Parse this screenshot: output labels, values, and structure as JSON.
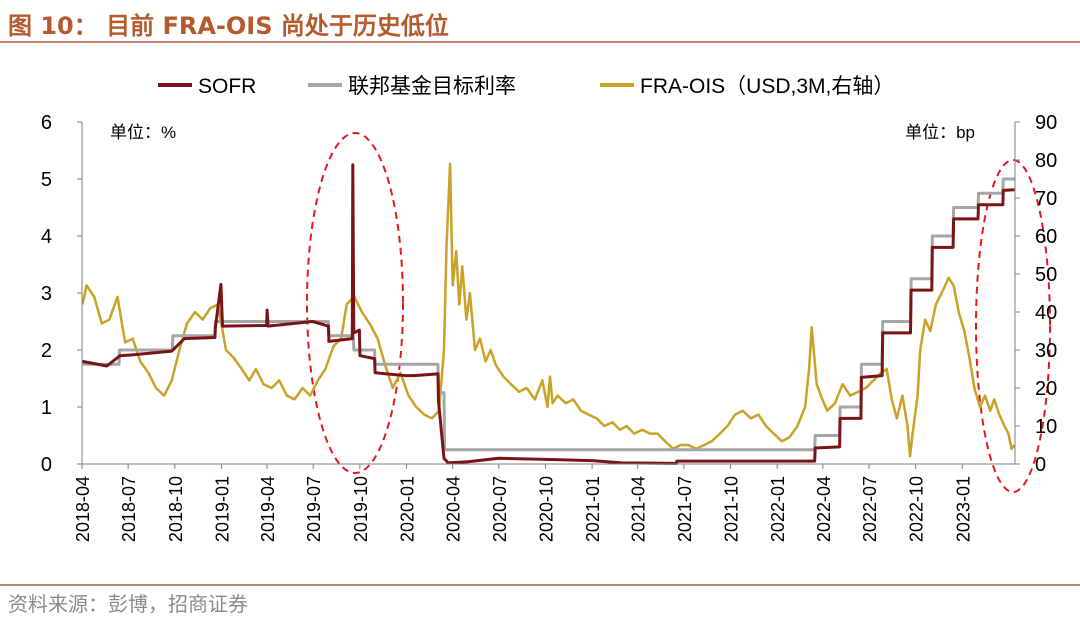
{
  "figure": {
    "title": "图 10： 目前 FRA-OIS 尚处于历史低位",
    "source": "资料来源：彭博，招商证券"
  },
  "chart_data": {
    "type": "line",
    "left_unit": "单位：%",
    "right_unit": "单位：bp",
    "y_left_lim": [
      0,
      6
    ],
    "y_right_lim": [
      0,
      90
    ],
    "y_left_ticks": [
      "0",
      "1",
      "2",
      "3",
      "4",
      "5",
      "6"
    ],
    "y_right_ticks": [
      "0",
      "10",
      "20",
      "30",
      "40",
      "50",
      "60",
      "70",
      "80",
      "90"
    ],
    "x_range": [
      "2018-04-01",
      "2023-04-15"
    ],
    "x_ticks": [
      "2018-04",
      "2018-07",
      "2018-10",
      "2019-01",
      "2019-04",
      "2019-07",
      "2019-10",
      "2020-01",
      "2020-04",
      "2020-07",
      "2020-10",
      "2021-01",
      "2021-04",
      "2021-07",
      "2021-10",
      "2022-01",
      "2022-04",
      "2022-07",
      "2022-10",
      "2023-01"
    ],
    "grid": false,
    "legend_position": "top",
    "series": [
      {
        "name": "SOFR",
        "axis": "left",
        "color": "#7a1416",
        "points": [
          [
            "2018-04-02",
            1.8
          ],
          [
            "2018-05-20",
            1.72
          ],
          [
            "2018-06-15",
            1.9
          ],
          [
            "2018-07-15",
            1.92
          ],
          [
            "2018-09-25",
            1.98
          ],
          [
            "2018-10-20",
            2.2
          ],
          [
            "2018-12-19",
            2.22
          ],
          [
            "2018-12-20",
            2.4
          ],
          [
            "2018-12-31",
            3.15
          ],
          [
            "2019-01-03",
            2.42
          ],
          [
            "2019-03-31",
            2.43
          ],
          [
            "2019-04-01",
            2.7
          ],
          [
            "2019-04-03",
            2.42
          ],
          [
            "2019-06-30",
            2.5
          ],
          [
            "2019-07-31",
            2.42
          ],
          [
            "2019-08-01",
            2.15
          ],
          [
            "2019-09-16",
            2.2
          ],
          [
            "2019-09-17",
            5.25
          ],
          [
            "2019-09-19",
            2.3
          ],
          [
            "2019-09-30",
            2.35
          ],
          [
            "2019-10-01",
            1.9
          ],
          [
            "2019-10-30",
            1.85
          ],
          [
            "2019-10-31",
            1.6
          ],
          [
            "2019-12-31",
            1.55
          ],
          [
            "2020-01-15",
            1.55
          ],
          [
            "2020-03-03",
            1.58
          ],
          [
            "2020-03-04",
            1.1
          ],
          [
            "2020-03-15",
            0.1
          ],
          [
            "2020-03-23",
            0.02
          ],
          [
            "2020-05-01",
            0.04
          ],
          [
            "2020-07-01",
            0.1
          ],
          [
            "2020-10-01",
            0.08
          ],
          [
            "2021-01-01",
            0.06
          ],
          [
            "2021-03-01",
            0.02
          ],
          [
            "2021-06-16",
            0.01
          ],
          [
            "2021-06-17",
            0.05
          ],
          [
            "2022-03-16",
            0.05
          ],
          [
            "2022-03-17",
            0.28
          ],
          [
            "2022-05-04",
            0.3
          ],
          [
            "2022-05-05",
            0.8
          ],
          [
            "2022-06-15",
            0.8
          ],
          [
            "2022-06-16",
            1.52
          ],
          [
            "2022-07-27",
            1.55
          ],
          [
            "2022-07-28",
            2.3
          ],
          [
            "2022-09-21",
            2.3
          ],
          [
            "2022-09-22",
            3.05
          ],
          [
            "2022-11-02",
            3.05
          ],
          [
            "2022-11-03",
            3.8
          ],
          [
            "2022-12-14",
            3.8
          ],
          [
            "2022-12-15",
            4.3
          ],
          [
            "2023-02-01",
            4.3
          ],
          [
            "2023-02-02",
            4.55
          ],
          [
            "2023-03-22",
            4.55
          ],
          [
            "2023-03-23",
            4.8
          ],
          [
            "2023-04-14",
            4.81
          ]
        ]
      },
      {
        "name": "联邦基金目标利率",
        "axis": "left",
        "color": "#a6a6a6",
        "points": [
          [
            "2018-04-02",
            1.75
          ],
          [
            "2018-06-13",
            1.75
          ],
          [
            "2018-06-14",
            2.0
          ],
          [
            "2018-09-26",
            2.0
          ],
          [
            "2018-09-27",
            2.25
          ],
          [
            "2018-12-19",
            2.25
          ],
          [
            "2018-12-20",
            2.5
          ],
          [
            "2019-07-31",
            2.5
          ],
          [
            "2019-08-01",
            2.25
          ],
          [
            "2019-09-18",
            2.25
          ],
          [
            "2019-09-19",
            2.0
          ],
          [
            "2019-10-30",
            2.0
          ],
          [
            "2019-10-31",
            1.75
          ],
          [
            "2020-03-03",
            1.75
          ],
          [
            "2020-03-04",
            1.25
          ],
          [
            "2020-03-15",
            1.25
          ],
          [
            "2020-03-16",
            0.25
          ],
          [
            "2022-03-16",
            0.25
          ],
          [
            "2022-03-17",
            0.5
          ],
          [
            "2022-05-04",
            0.5
          ],
          [
            "2022-05-05",
            1.0
          ],
          [
            "2022-06-15",
            1.0
          ],
          [
            "2022-06-16",
            1.75
          ],
          [
            "2022-07-27",
            1.75
          ],
          [
            "2022-07-28",
            2.5
          ],
          [
            "2022-09-21",
            2.5
          ],
          [
            "2022-09-22",
            3.25
          ],
          [
            "2022-11-02",
            3.25
          ],
          [
            "2022-11-03",
            4.0
          ],
          [
            "2022-12-14",
            4.0
          ],
          [
            "2022-12-15",
            4.5
          ],
          [
            "2023-02-01",
            4.5
          ],
          [
            "2023-02-02",
            4.75
          ],
          [
            "2023-03-22",
            4.75
          ],
          [
            "2023-03-23",
            5.0
          ],
          [
            "2023-04-14",
            5.0
          ]
        ]
      },
      {
        "name": "FRA-OIS（USD,3M,右轴）",
        "axis": "right",
        "color": "#c9a227",
        "points": [
          [
            "2018-04-02",
            42
          ],
          [
            "2018-04-10",
            47
          ],
          [
            "2018-04-25",
            44
          ],
          [
            "2018-05-10",
            37
          ],
          [
            "2018-05-25",
            38
          ],
          [
            "2018-06-10",
            44
          ],
          [
            "2018-06-25",
            32
          ],
          [
            "2018-07-10",
            33
          ],
          [
            "2018-07-25",
            27
          ],
          [
            "2018-08-10",
            24
          ],
          [
            "2018-08-25",
            20
          ],
          [
            "2018-09-10",
            18
          ],
          [
            "2018-09-25",
            22
          ],
          [
            "2018-10-10",
            30
          ],
          [
            "2018-10-25",
            37
          ],
          [
            "2018-11-10",
            40
          ],
          [
            "2018-11-25",
            38
          ],
          [
            "2018-12-10",
            41
          ],
          [
            "2018-12-25",
            42
          ],
          [
            "2019-01-10",
            30
          ],
          [
            "2019-01-25",
            28
          ],
          [
            "2019-02-10",
            25
          ],
          [
            "2019-02-25",
            22
          ],
          [
            "2019-03-10",
            25
          ],
          [
            "2019-03-25",
            21
          ],
          [
            "2019-04-10",
            20
          ],
          [
            "2019-04-25",
            22
          ],
          [
            "2019-05-10",
            18
          ],
          [
            "2019-05-25",
            17
          ],
          [
            "2019-06-10",
            20
          ],
          [
            "2019-06-25",
            18
          ],
          [
            "2019-07-10",
            22
          ],
          [
            "2019-07-25",
            25
          ],
          [
            "2019-08-10",
            31
          ],
          [
            "2019-08-25",
            33
          ],
          [
            "2019-09-05",
            42
          ],
          [
            "2019-09-20",
            44
          ],
          [
            "2019-10-05",
            40
          ],
          [
            "2019-10-20",
            37
          ],
          [
            "2019-11-05",
            33
          ],
          [
            "2019-11-20",
            26
          ],
          [
            "2019-12-05",
            20
          ],
          [
            "2019-12-20",
            24
          ],
          [
            "2020-01-05",
            18
          ],
          [
            "2020-01-20",
            15
          ],
          [
            "2020-02-05",
            13
          ],
          [
            "2020-02-20",
            12
          ],
          [
            "2020-03-05",
            14
          ],
          [
            "2020-03-15",
            30
          ],
          [
            "2020-03-20",
            58
          ],
          [
            "2020-03-27",
            79
          ],
          [
            "2020-04-01",
            47
          ],
          [
            "2020-04-08",
            56
          ],
          [
            "2020-04-14",
            42
          ],
          [
            "2020-04-20",
            52
          ],
          [
            "2020-04-28",
            38
          ],
          [
            "2020-05-05",
            45
          ],
          [
            "2020-05-15",
            30
          ],
          [
            "2020-05-25",
            33
          ],
          [
            "2020-06-05",
            27
          ],
          [
            "2020-06-15",
            30
          ],
          [
            "2020-06-25",
            26
          ],
          [
            "2020-07-10",
            23
          ],
          [
            "2020-07-25",
            21
          ],
          [
            "2020-08-10",
            19
          ],
          [
            "2020-08-25",
            20
          ],
          [
            "2020-09-10",
            17
          ],
          [
            "2020-09-25",
            22
          ],
          [
            "2020-10-05",
            15
          ],
          [
            "2020-10-10",
            23
          ],
          [
            "2020-10-15",
            16
          ],
          [
            "2020-10-25",
            18
          ],
          [
            "2020-11-10",
            16
          ],
          [
            "2020-11-25",
            17
          ],
          [
            "2020-12-10",
            14
          ],
          [
            "2020-12-25",
            13
          ],
          [
            "2021-01-10",
            12
          ],
          [
            "2021-01-25",
            10
          ],
          [
            "2021-02-10",
            11
          ],
          [
            "2021-02-25",
            9
          ],
          [
            "2021-03-10",
            10
          ],
          [
            "2021-03-25",
            8
          ],
          [
            "2021-04-10",
            9
          ],
          [
            "2021-04-25",
            8
          ],
          [
            "2021-05-10",
            8
          ],
          [
            "2021-05-25",
            6
          ],
          [
            "2021-06-10",
            4
          ],
          [
            "2021-06-25",
            5
          ],
          [
            "2021-07-10",
            5
          ],
          [
            "2021-07-25",
            4
          ],
          [
            "2021-08-10",
            5
          ],
          [
            "2021-08-25",
            6
          ],
          [
            "2021-09-10",
            8
          ],
          [
            "2021-09-25",
            10
          ],
          [
            "2021-10-10",
            13
          ],
          [
            "2021-10-25",
            14
          ],
          [
            "2021-11-10",
            12
          ],
          [
            "2021-11-25",
            13
          ],
          [
            "2021-12-10",
            10
          ],
          [
            "2021-12-25",
            8
          ],
          [
            "2022-01-10",
            6
          ],
          [
            "2022-01-25",
            7
          ],
          [
            "2022-02-10",
            10
          ],
          [
            "2022-02-25",
            15
          ],
          [
            "2022-03-05",
            25
          ],
          [
            "2022-03-10",
            36
          ],
          [
            "2022-03-20",
            21
          ],
          [
            "2022-03-31",
            17
          ],
          [
            "2022-04-10",
            14
          ],
          [
            "2022-04-25",
            16
          ],
          [
            "2022-05-10",
            21
          ],
          [
            "2022-05-25",
            18
          ],
          [
            "2022-06-10",
            19
          ],
          [
            "2022-06-25",
            20
          ],
          [
            "2022-07-10",
            22
          ],
          [
            "2022-07-25",
            24
          ],
          [
            "2022-08-05",
            25
          ],
          [
            "2022-08-15",
            17
          ],
          [
            "2022-08-25",
            12
          ],
          [
            "2022-09-05",
            18
          ],
          [
            "2022-09-15",
            10
          ],
          [
            "2022-09-20",
            2
          ],
          [
            "2022-09-25",
            8
          ],
          [
            "2022-10-05",
            18
          ],
          [
            "2022-10-10",
            30
          ],
          [
            "2022-10-20",
            38
          ],
          [
            "2022-10-30",
            35
          ],
          [
            "2022-11-10",
            42
          ],
          [
            "2022-11-25",
            46
          ],
          [
            "2022-12-05",
            49
          ],
          [
            "2022-12-15",
            47
          ],
          [
            "2022-12-25",
            40
          ],
          [
            "2023-01-05",
            35
          ],
          [
            "2023-01-15",
            28
          ],
          [
            "2023-01-25",
            20
          ],
          [
            "2023-02-05",
            15
          ],
          [
            "2023-02-15",
            18
          ],
          [
            "2023-02-25",
            14
          ],
          [
            "2023-03-05",
            17
          ],
          [
            "2023-03-15",
            13
          ],
          [
            "2023-03-25",
            10
          ],
          [
            "2023-04-02",
            8
          ],
          [
            "2023-04-08",
            4
          ],
          [
            "2023-04-14",
            5
          ]
        ]
      }
    ]
  }
}
